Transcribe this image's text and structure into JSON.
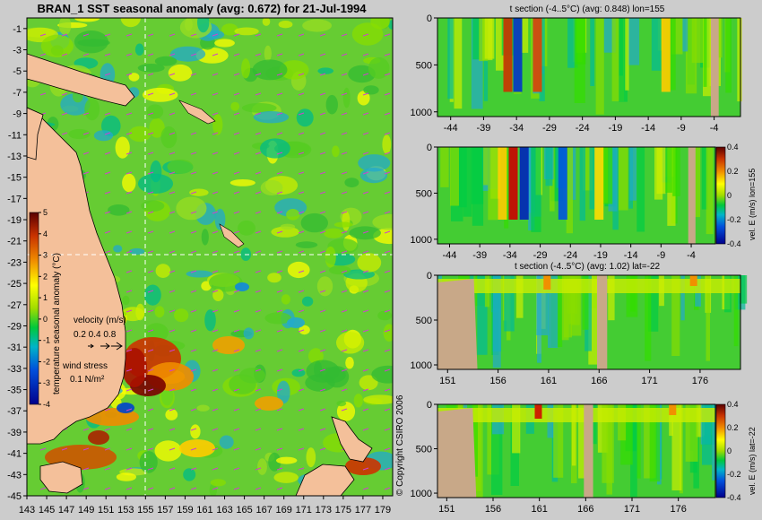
{
  "map": {
    "title": "BRAN_1 SST seasonal anomaly (avg: 0.672) for 21-Jul-1994",
    "lat_ticks": [
      "-1",
      "-3",
      "-5",
      "-7",
      "-9",
      "-11",
      "-13",
      "-15",
      "-17",
      "-19",
      "-21",
      "-23",
      "-25",
      "-27",
      "-29",
      "-31",
      "-33",
      "-35",
      "-37",
      "-39",
      "-41",
      "-43",
      "-45"
    ],
    "lon_ticks": [
      "143",
      "145",
      "147",
      "149",
      "151",
      "153",
      "155",
      "157",
      "159",
      "161",
      "163",
      "165",
      "167",
      "169",
      "171",
      "173",
      "175",
      "177",
      "179"
    ],
    "colorbar_title": "temperature seasonal anomaly (°C)",
    "colorbar_ticks": [
      "5",
      "4",
      "3",
      "2",
      "1",
      "0",
      "-1",
      "-2",
      "-3",
      "-4"
    ],
    "velocity_label": "velocity (m/s)",
    "velocity_scale": "0.2 0.4 0.8",
    "wind_label": "wind stress",
    "wind_scale": "0.1 N/m²",
    "copyright": "© Copyright CSIRO 2006"
  },
  "panels": [
    {
      "title": "t section (-4..5°C) (avg: 0.848) lon=155",
      "x_ticks": [
        "-44",
        "-39",
        "-34",
        "-29",
        "-24",
        "-19",
        "-14",
        "-9",
        "-4"
      ],
      "y_ticks": [
        "0",
        "500",
        "1000"
      ]
    },
    {
      "title": "",
      "x_ticks": [
        "-44",
        "-39",
        "-34",
        "-29",
        "-24",
        "-19",
        "-14",
        "-9",
        "-4"
      ],
      "y_ticks": [
        "0",
        "500",
        "1000"
      ],
      "side_label": "vel. E (m/s) lon=155",
      "colorbar_ticks": [
        "0.4",
        "0.2",
        "0",
        "-0.2",
        "-0.4"
      ]
    },
    {
      "title": "t section (-4..5°C) (avg: 1.02) lat=-22",
      "x_ticks": [
        "151",
        "156",
        "161",
        "166",
        "171",
        "176"
      ],
      "y_ticks": [
        "0",
        "500",
        "1000"
      ]
    },
    {
      "title": "",
      "x_ticks": [
        "151",
        "156",
        "161",
        "166",
        "171",
        "176"
      ],
      "y_ticks": [
        "0",
        "500",
        "1000"
      ],
      "side_label": "vel. E (m/s) lat=-22",
      "colorbar_ticks": [
        "0.4",
        "0.2",
        "0",
        "-0.2",
        "-0.4"
      ]
    }
  ],
  "chart_data": [
    {
      "type": "heatmap",
      "title": "BRAN_1 SST seasonal anomaly (avg: 0.672) for 21-Jul-1994",
      "xlabel": "",
      "ylabel": "",
      "xlim": [
        143,
        180
      ],
      "ylim": [
        -45,
        0
      ],
      "colorbar": {
        "label": "temperature seasonal anomaly (°C)",
        "range": [
          -4,
          5
        ]
      },
      "crosshair": {
        "lon": 155,
        "lat": -22
      },
      "average": 0.672
    },
    {
      "type": "heatmap",
      "title": "t section (-4..5°C) (avg: 0.848) lon=155",
      "xlim": [
        -46,
        0
      ],
      "ylim": [
        1000,
        0
      ],
      "average": 0.848
    },
    {
      "type": "heatmap",
      "title": "",
      "side_label": "vel. E (m/s) lon=155",
      "xlim": [
        -46,
        0
      ],
      "ylim": [
        1000,
        0
      ],
      "colorbar": {
        "range": [
          -0.4,
          0.4
        ]
      }
    },
    {
      "type": "heatmap",
      "title": "t section (-4..5°C) (avg: 1.02) lat=-22",
      "xlim": [
        150,
        180
      ],
      "ylim": [
        1000,
        0
      ],
      "average": 1.02
    },
    {
      "type": "heatmap",
      "title": "",
      "side_label": "vel. E (m/s) lat=-22",
      "xlim": [
        150,
        180
      ],
      "ylim": [
        1000,
        0
      ],
      "colorbar": {
        "range": [
          -0.4,
          0.4
        ]
      }
    }
  ]
}
